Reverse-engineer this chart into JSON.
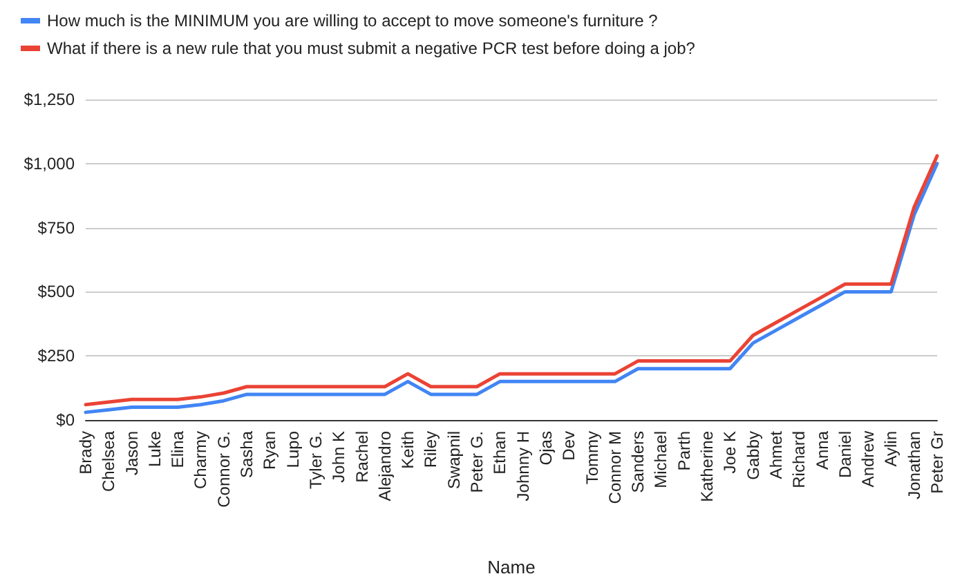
{
  "chart_data": {
    "type": "line",
    "xlabel": "Name",
    "categories": [
      "Brady",
      "Chelsea",
      "Jason",
      "Luke",
      "Elina",
      "Charmy",
      "Connor G.",
      "Sasha",
      "Ryan",
      "Lupo",
      "Tyler G.",
      "John K",
      "Rachel",
      "Alejandro",
      "Keith",
      "Riley",
      "Swapnil",
      "Peter G.",
      "Ethan",
      "Johnny H",
      "Ojas",
      "Dev",
      "Tommy",
      "Connor M",
      "Sanders",
      "Michael",
      "Parth",
      "Katherine",
      "Joe K",
      "Gabby",
      "Ahmet",
      "Richard",
      "Anna",
      "Daniel",
      "Andrew",
      "Aylin",
      "Jonathan",
      "Peter Gr"
    ],
    "series": [
      {
        "name": "How much is the MINIMUM you are willing to accept to move someone's furniture ?",
        "color": "#4285f4",
        "values": [
          30,
          40,
          50,
          50,
          50,
          60,
          75,
          100,
          100,
          100,
          100,
          100,
          100,
          100,
          150,
          100,
          100,
          100,
          150,
          150,
          150,
          150,
          150,
          150,
          200,
          200,
          200,
          200,
          200,
          300,
          350,
          400,
          450,
          500,
          500,
          500,
          800,
          1000
        ]
      },
      {
        "name": "What if there is a new rule that you must submit a negative PCR test before doing a job?",
        "color": "#ea4335",
        "values": [
          60,
          70,
          80,
          80,
          80,
          90,
          105,
          130,
          130,
          130,
          130,
          130,
          130,
          130,
          180,
          130,
          130,
          130,
          180,
          180,
          180,
          180,
          180,
          180,
          230,
          230,
          230,
          230,
          230,
          330,
          380,
          430,
          480,
          530,
          530,
          530,
          830,
          1030
        ]
      }
    ],
    "ylim": [
      0,
      1250
    ],
    "yticks": [
      {
        "value": 0,
        "label": "$0"
      },
      {
        "value": 250,
        "label": "$250"
      },
      {
        "value": 500,
        "label": "$500"
      },
      {
        "value": 750,
        "label": "$750"
      },
      {
        "value": 1000,
        "label": "$1,000"
      },
      {
        "value": 1250,
        "label": "$1,250"
      }
    ],
    "grid": "y",
    "legend": "top",
    "marker": "none",
    "line_style": "solid"
  }
}
